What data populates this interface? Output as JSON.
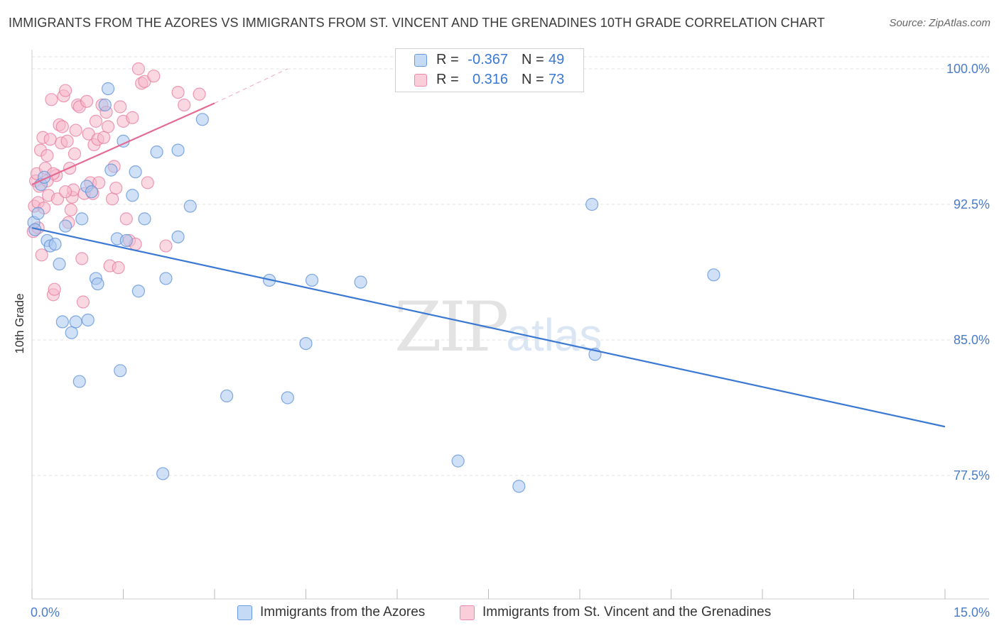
{
  "header": {
    "title": "IMMIGRANTS FROM THE AZORES VS IMMIGRANTS FROM ST. VINCENT AND THE GRENADINES 10TH GRADE CORRELATION CHART",
    "source": "Source: ZipAtlas.com"
  },
  "watermark": {
    "zip": "ZIP",
    "atlas": "atlas"
  },
  "stats": {
    "r_label": "R =",
    "n_label": "N =",
    "azores": {
      "r": "-0.367",
      "n": "49"
    },
    "stvincent": {
      "r": "0.316",
      "n": "73"
    }
  },
  "legend": {
    "azores": "Immigrants from the Azores",
    "stvincent": "Immigrants from St. Vincent and the Grenadines"
  },
  "colors": {
    "azores_fill": "#a9c7ee",
    "azores_stroke": "#5b8fd8",
    "azores_line": "#3a78d4",
    "stvincent_fill": "#f6b8cb",
    "stvincent_stroke": "#e77b9f",
    "stvincent_line": "#e56a93",
    "axis_label": "#4a7cc9",
    "grid": "#e3e3e3"
  },
  "chart_data": {
    "type": "scatter",
    "title": "IMMIGRANTS FROM THE AZORES VS IMMIGRANTS FROM ST. VINCENT AND THE GRENADINES 10TH GRADE CORRELATION CHART",
    "xlabel": "",
    "ylabel": "10th Grade",
    "xlim": [
      0.0,
      15.0
    ],
    "ylim": [
      70.0,
      101.0
    ],
    "x_tick_labels": [
      "0.0%",
      "15.0%"
    ],
    "y_ticks": [
      77.5,
      85.0,
      92.5,
      100.0
    ],
    "y_tick_labels": [
      "77.5%",
      "85.0%",
      "92.5%",
      "100.0%"
    ],
    "grid": true,
    "series": [
      {
        "name": "Immigrants from the Azores",
        "r": -0.367,
        "n": 49,
        "trend": {
          "x": [
            0.0,
            15.0
          ],
          "y": [
            91.2,
            80.2
          ]
        },
        "points": [
          [
            0.03,
            91.5
          ],
          [
            0.05,
            91.1
          ],
          [
            0.1,
            92.0
          ],
          [
            0.15,
            93.6
          ],
          [
            0.2,
            94.0
          ],
          [
            0.25,
            90.5
          ],
          [
            0.3,
            90.2
          ],
          [
            0.38,
            90.3
          ],
          [
            0.45,
            89.2
          ],
          [
            0.5,
            86.0
          ],
          [
            0.55,
            91.3
          ],
          [
            0.65,
            85.4
          ],
          [
            0.72,
            86.0
          ],
          [
            0.78,
            82.7
          ],
          [
            0.82,
            91.7
          ],
          [
            0.9,
            93.5
          ],
          [
            0.92,
            86.1
          ],
          [
            0.98,
            93.2
          ],
          [
            1.05,
            88.4
          ],
          [
            1.08,
            88.1
          ],
          [
            1.2,
            98.0
          ],
          [
            1.25,
            98.9
          ],
          [
            1.3,
            94.4
          ],
          [
            1.4,
            90.6
          ],
          [
            1.45,
            83.3
          ],
          [
            1.5,
            96.0
          ],
          [
            1.55,
            90.5
          ],
          [
            1.65,
            93.0
          ],
          [
            1.7,
            94.3
          ],
          [
            1.75,
            87.7
          ],
          [
            1.85,
            91.7
          ],
          [
            2.05,
            95.4
          ],
          [
            2.15,
            77.6
          ],
          [
            2.2,
            88.4
          ],
          [
            2.4,
            90.7
          ],
          [
            2.4,
            95.5
          ],
          [
            2.6,
            92.4
          ],
          [
            2.8,
            97.2
          ],
          [
            3.2,
            81.9
          ],
          [
            3.9,
            88.3
          ],
          [
            4.2,
            81.8
          ],
          [
            4.5,
            84.8
          ],
          [
            4.6,
            88.3
          ],
          [
            5.4,
            88.2
          ],
          [
            7.0,
            78.3
          ],
          [
            8.0,
            76.9
          ],
          [
            9.2,
            92.5
          ],
          [
            9.25,
            84.2
          ],
          [
            11.2,
            88.6
          ]
        ]
      },
      {
        "name": "Immigrants from St. Vincent and the Grenadines",
        "r": 0.316,
        "n": 73,
        "trend": {
          "x": [
            0.0,
            3.0
          ],
          "y": [
            93.6,
            98.1
          ],
          "dashed_extension": {
            "x": [
              3.0,
              4.2
            ],
            "y": [
              98.1,
              100.0
            ]
          }
        },
        "points": [
          [
            0.02,
            91.0
          ],
          [
            0.04,
            92.4
          ],
          [
            0.06,
            93.8
          ],
          [
            0.08,
            94.2
          ],
          [
            0.1,
            92.6
          ],
          [
            0.12,
            93.5
          ],
          [
            0.14,
            95.5
          ],
          [
            0.16,
            89.7
          ],
          [
            0.18,
            96.2
          ],
          [
            0.2,
            92.3
          ],
          [
            0.22,
            94.5
          ],
          [
            0.25,
            95.2
          ],
          [
            0.27,
            93.0
          ],
          [
            0.3,
            96.1
          ],
          [
            0.32,
            98.3
          ],
          [
            0.35,
            87.5
          ],
          [
            0.37,
            87.8
          ],
          [
            0.4,
            94.1
          ],
          [
            0.42,
            92.8
          ],
          [
            0.45,
            96.9
          ],
          [
            0.48,
            95.9
          ],
          [
            0.5,
            96.8
          ],
          [
            0.52,
            98.5
          ],
          [
            0.55,
            98.8
          ],
          [
            0.58,
            96.0
          ],
          [
            0.6,
            91.5
          ],
          [
            0.62,
            94.5
          ],
          [
            0.64,
            92.2
          ],
          [
            0.66,
            92.9
          ],
          [
            0.68,
            93.3
          ],
          [
            0.7,
            95.3
          ],
          [
            0.72,
            96.6
          ],
          [
            0.75,
            98.0
          ],
          [
            0.78,
            97.9
          ],
          [
            0.82,
            89.5
          ],
          [
            0.84,
            87.1
          ],
          [
            0.86,
            93.1
          ],
          [
            0.9,
            98.2
          ],
          [
            0.93,
            96.4
          ],
          [
            0.96,
            93.7
          ],
          [
            1.0,
            93.1
          ],
          [
            1.02,
            95.8
          ],
          [
            1.05,
            97.1
          ],
          [
            1.08,
            96.1
          ],
          [
            1.1,
            93.7
          ],
          [
            1.15,
            98.0
          ],
          [
            1.18,
            96.2
          ],
          [
            1.22,
            97.6
          ],
          [
            1.25,
            96.8
          ],
          [
            1.28,
            89.1
          ],
          [
            1.32,
            92.8
          ],
          [
            1.35,
            94.6
          ],
          [
            1.38,
            93.4
          ],
          [
            1.42,
            89.0
          ],
          [
            1.45,
            97.9
          ],
          [
            1.5,
            97.1
          ],
          [
            1.55,
            91.7
          ],
          [
            1.6,
            90.5
          ],
          [
            1.65,
            97.3
          ],
          [
            1.7,
            90.3
          ],
          [
            1.75,
            100.0
          ],
          [
            1.8,
            99.2
          ],
          [
            1.85,
            99.3
          ],
          [
            1.9,
            93.7
          ],
          [
            2.0,
            99.6
          ],
          [
            2.2,
            90.2
          ],
          [
            2.4,
            98.7
          ],
          [
            2.5,
            98.0
          ],
          [
            2.75,
            98.6
          ],
          [
            0.35,
            94.2
          ],
          [
            0.55,
            93.2
          ],
          [
            0.25,
            93.8
          ],
          [
            0.1,
            91.2
          ]
        ]
      }
    ]
  }
}
